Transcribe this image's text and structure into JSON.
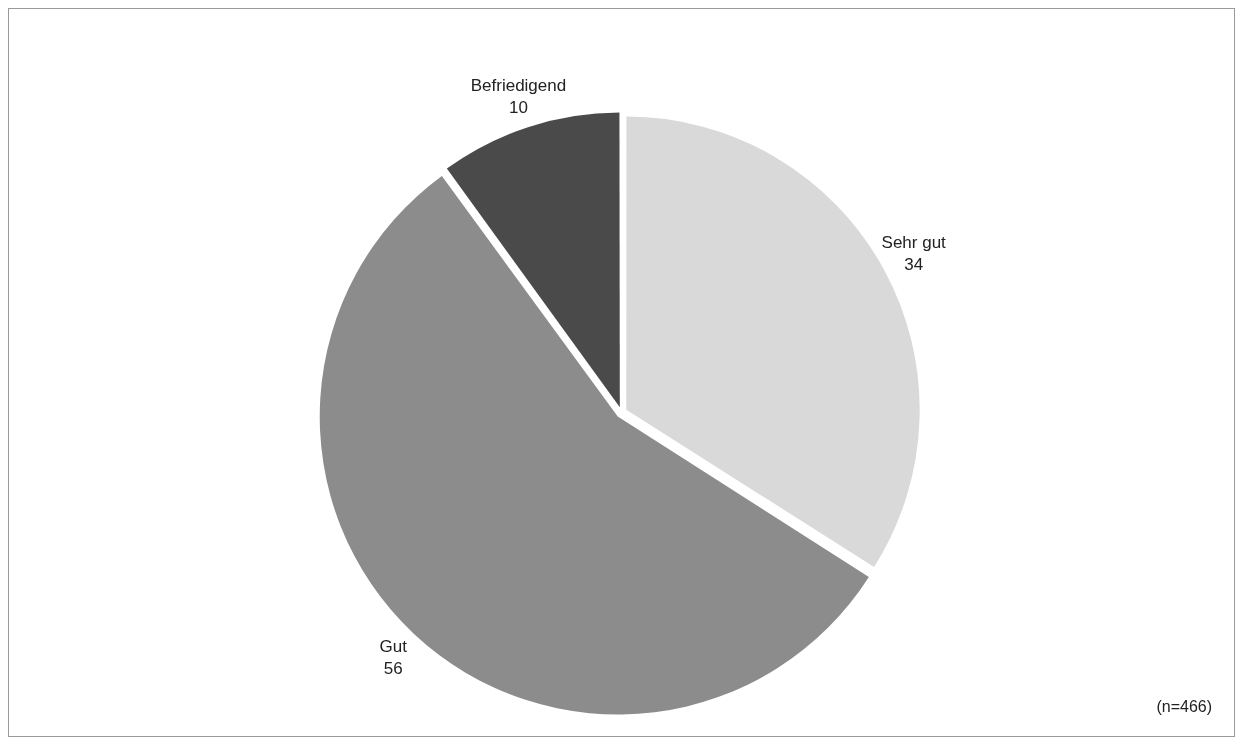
{
  "chart_data": {
    "type": "pie",
    "categories": [
      "Sehr gut",
      "Gut",
      "Befriedigend"
    ],
    "values": [
      34,
      56,
      10
    ],
    "colors": [
      "#d9d9d9",
      "#8c8c8c",
      "#4a4a4a"
    ],
    "data_labels": true,
    "legend": false,
    "annotations": [
      "(n=466)"
    ]
  }
}
